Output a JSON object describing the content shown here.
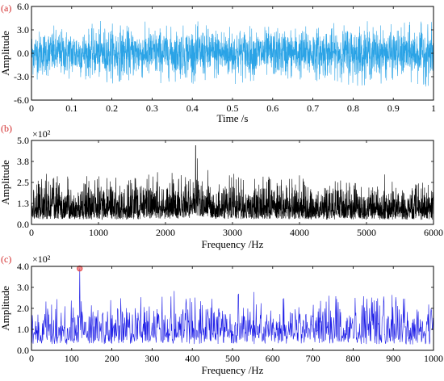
{
  "chart_data": [
    {
      "type": "line",
      "panel_label": "(a)",
      "xlabel": "Time /s",
      "ylabel": "Amplitude",
      "xlim": [
        0,
        1
      ],
      "ylim": [
        -6.0,
        6.0
      ],
      "xticks": [
        "0",
        "0.1",
        "0.2",
        "0.3",
        "0.4",
        "0.5",
        "0.6",
        "0.7",
        "0.8",
        "0.9",
        "1"
      ],
      "yticks": [
        "-6.0",
        "-3.0",
        "0.0",
        "3.0",
        "6.0"
      ],
      "yexponent": "",
      "color": "#2aa3e6",
      "series": [
        {
          "description_values": "random noise signal, 0 to 1 s",
          "x": [
            0,
            0.05,
            0.1,
            0.15,
            0.2,
            0.22,
            0.25,
            0.3,
            0.35,
            0.4,
            0.45,
            0.5,
            0.55,
            0.6,
            0.65,
            0.7,
            0.75,
            0.8,
            0.85,
            0.9,
            0.95,
            1.0
          ],
          "envelope_max": [
            3.6,
            3.9,
            3.7,
            4.0,
            4.6,
            4.9,
            4.0,
            4.1,
            3.7,
            4.2,
            3.8,
            4.3,
            4.0,
            3.6,
            3.9,
            4.4,
            4.2,
            4.7,
            3.9,
            3.7,
            4.1,
            4.0
          ],
          "envelope_min": [
            -3.3,
            -3.5,
            -3.7,
            -3.2,
            -3.9,
            -3.6,
            -3.4,
            -4.0,
            -3.6,
            -3.9,
            -4.1,
            -4.0,
            -3.5,
            -3.9,
            -3.7,
            -3.6,
            -3.4,
            -4.2,
            -4.0,
            -3.7,
            -4.1,
            -4.5
          ]
        }
      ]
    },
    {
      "type": "line",
      "panel_label": "(b)",
      "xlabel": "Frequency /Hz",
      "ylabel": "Amplitude",
      "xlim": [
        0,
        6000
      ],
      "ylim": [
        0,
        5.0
      ],
      "xticks": [
        "0",
        "1000",
        "2000",
        "3000",
        "4000",
        "5000",
        "6000"
      ],
      "yticks": [
        "0.0",
        "1.3",
        "2.5",
        "3.8",
        "5.0"
      ],
      "yexponent": "×10²",
      "color": "#000000",
      "series": [
        {
          "x": [
            0,
            250,
            500,
            750,
            1000,
            1250,
            1500,
            1750,
            2000,
            2250,
            2400,
            2450,
            2500,
            2600,
            2750,
            3000,
            3250,
            3500,
            3750,
            4000,
            4250,
            4500,
            4750,
            5000,
            5250,
            5500,
            5750,
            6000
          ],
          "envelope_max": [
            2.9,
            3.2,
            3.0,
            3.1,
            3.0,
            2.9,
            3.2,
            3.1,
            3.3,
            3.4,
            3.9,
            4.7,
            3.7,
            3.3,
            3.1,
            3.0,
            3.2,
            3.1,
            2.9,
            3.0,
            2.8,
            3.0,
            2.9,
            2.8,
            3.0,
            2.9,
            2.7,
            2.8
          ],
          "baseline": [
            1.2,
            1.25,
            1.2,
            1.2,
            1.15,
            1.2,
            1.2,
            1.25,
            1.3,
            1.4,
            1.6,
            1.8,
            1.6,
            1.45,
            1.35,
            1.3,
            1.25,
            1.2,
            1.2,
            1.2,
            1.15,
            1.15,
            1.15,
            1.1,
            1.1,
            1.1,
            1.1,
            1.1
          ]
        }
      ]
    },
    {
      "type": "line",
      "panel_label": "(c)",
      "xlabel": "Frequency /Hz",
      "ylabel": "Amplitude",
      "xlim": [
        0,
        1000
      ],
      "ylim": [
        0,
        4.0
      ],
      "xticks": [
        "0",
        "100",
        "200",
        "300",
        "400",
        "500",
        "600",
        "700",
        "800",
        "900",
        "1000"
      ],
      "yticks": [
        "0.0",
        "1.0",
        "2.0",
        "3.0",
        "4.0"
      ],
      "yexponent": "×10²",
      "color": "#1a1ae6",
      "marker": {
        "x": 120,
        "y": 3.9,
        "color": "#e84a4a"
      },
      "series": [
        {
          "x": [
            0,
            50,
            100,
            120,
            150,
            200,
            250,
            300,
            350,
            400,
            450,
            500,
            550,
            600,
            650,
            700,
            750,
            800,
            850,
            900,
            950,
            1000
          ],
          "envelope_max": [
            2.2,
            2.5,
            2.6,
            3.9,
            2.4,
            2.8,
            2.7,
            2.6,
            2.9,
            2.8,
            2.7,
            2.9,
            2.8,
            3.2,
            3.1,
            2.7,
            2.6,
            2.8,
            2.5,
            2.7,
            2.3,
            2.2
          ],
          "baseline": [
            1.2,
            1.2,
            1.1,
            1.1,
            1.2,
            1.2,
            1.2,
            1.2,
            1.2,
            1.2,
            1.2,
            1.2,
            1.2,
            1.2,
            1.2,
            1.2,
            1.2,
            1.2,
            1.2,
            1.2,
            1.1,
            1.1
          ]
        }
      ]
    }
  ]
}
